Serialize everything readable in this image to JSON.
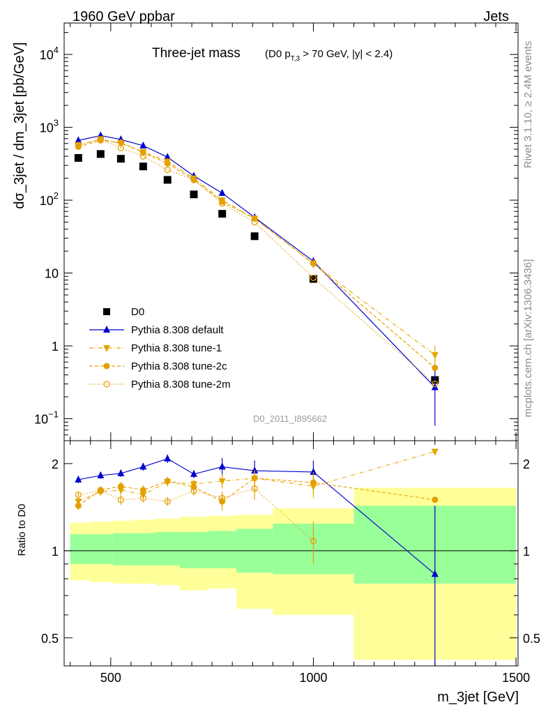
{
  "header": {
    "left": "1960 GeV ppbar",
    "right": "Jets"
  },
  "side_text": {
    "top": "Rivet 3.1.10, ≥ 2.4M events",
    "bottom": "mcplots.cern.ch [arXiv:1306.3436]"
  },
  "chart_data": [
    {
      "type": "scatter",
      "title": "Three-jet mass",
      "subtitle": "(D0 p_T,3 > 70 GeV, |y| < 2.4)",
      "watermark": "D0_2011_I895662",
      "ylabel": "dσ_3jet / dm_3jet [pb/GeV]",
      "xlim": [
        385,
        1505
      ],
      "ylim": [
        0.05,
        27000
      ],
      "yscale": "log",
      "yticks": [
        "10^-1",
        "1",
        "10",
        "10^2",
        "10^3",
        "10^4"
      ],
      "legend_position": "bottom-left",
      "x": [
        420,
        475,
        525,
        580,
        640,
        705,
        775,
        855,
        1000,
        1300
      ],
      "series": [
        {
          "name": "D0",
          "style": "data",
          "color": "#000000",
          "marker": "square",
          "values": [
            380,
            430,
            370,
            290,
            190,
            120,
            65,
            32,
            8.3,
            0.34
          ]
        },
        {
          "name": "Pythia 8.308 default",
          "style": "solid",
          "color": "#0000cc",
          "marker": "triangle-up",
          "values": [
            660,
            770,
            680,
            560,
            390,
            215,
            125,
            58,
            14.5,
            0.27
          ],
          "errors": [
            0,
            0,
            0,
            0,
            0,
            0,
            0,
            0,
            2,
            0.19
          ]
        },
        {
          "name": "Pythia 8.308 tune-1",
          "style": "dashdot",
          "color": "#e0a800",
          "marker": "triangle-down",
          "values": [
            570,
            690,
            600,
            460,
            340,
            200,
            100,
            56,
            13.5,
            0.75
          ],
          "errors": [
            0,
            0,
            0,
            0,
            0,
            0,
            0,
            0,
            2,
            0.25
          ]
        },
        {
          "name": "Pythia 8.308 tune-2c",
          "style": "dashed",
          "color": "#e69f00",
          "marker": "circle-filled",
          "values": [
            540,
            660,
            620,
            450,
            320,
            190,
            95,
            56,
            13.5,
            0.5
          ]
        },
        {
          "name": "Pythia 8.308 tune-2m",
          "style": "dotted",
          "color": "#e69f00",
          "marker": "circle-open",
          "values": [
            570,
            680,
            520,
            400,
            260,
            190,
            90,
            50,
            8.6,
            0.3
          ]
        }
      ]
    },
    {
      "type": "scatter",
      "ylabel": "Ratio to D0",
      "xlabel": "m_3jet [GeV]",
      "xlim": [
        385,
        1505
      ],
      "ylim": [
        0.4,
        2.4
      ],
      "yscale": "log",
      "yticks": [
        "0.5",
        "1",
        "2"
      ],
      "xticks": [
        "500",
        "1000",
        "1500"
      ],
      "reference_line": 1,
      "bands": {
        "inner_color": "#99ff99",
        "outer_color": "#ffff99",
        "bins": [
          {
            "lo": 400,
            "hi": 450,
            "inner": [
              0.9,
              1.14
            ],
            "outer": [
              0.79,
              1.25
            ]
          },
          {
            "lo": 450,
            "hi": 505,
            "inner": [
              0.9,
              1.14
            ],
            "outer": [
              0.78,
              1.26
            ]
          },
          {
            "lo": 505,
            "hi": 555,
            "inner": [
              0.89,
              1.15
            ],
            "outer": [
              0.77,
              1.27
            ]
          },
          {
            "lo": 555,
            "hi": 610,
            "inner": [
              0.89,
              1.15
            ],
            "outer": [
              0.77,
              1.28
            ]
          },
          {
            "lo": 610,
            "hi": 670,
            "inner": [
              0.89,
              1.16
            ],
            "outer": [
              0.76,
              1.29
            ]
          },
          {
            "lo": 670,
            "hi": 740,
            "inner": [
              0.87,
              1.16
            ],
            "outer": [
              0.73,
              1.31
            ]
          },
          {
            "lo": 740,
            "hi": 810,
            "inner": [
              0.87,
              1.17
            ],
            "outer": [
              0.74,
              1.32
            ]
          },
          {
            "lo": 810,
            "hi": 900,
            "inner": [
              0.84,
              1.19
            ],
            "outer": [
              0.63,
              1.33
            ]
          },
          {
            "lo": 900,
            "hi": 1100,
            "inner": [
              0.83,
              1.24
            ],
            "outer": [
              0.6,
              1.4
            ]
          },
          {
            "lo": 1100,
            "hi": 1500,
            "inner": [
              0.77,
              1.43
            ],
            "outer": [
              0.42,
              1.65
            ]
          }
        ]
      },
      "x": [
        420,
        475,
        525,
        580,
        640,
        705,
        775,
        855,
        1000,
        1300
      ],
      "series": [
        {
          "name": "Pythia 8.308 default",
          "color": "#0000cc",
          "marker": "triangle-up",
          "values": [
            1.76,
            1.82,
            1.85,
            1.95,
            2.08,
            1.84,
            1.95,
            1.89,
            1.87,
            0.83
          ],
          "errors": [
            0.05,
            0.05,
            0.05,
            0.06,
            0.07,
            0.06,
            0.14,
            0.16,
            0.18,
            0.6
          ]
        },
        {
          "name": "Pythia 8.308 tune-1",
          "color": "#e0a800",
          "marker": "triangle-down",
          "values": [
            1.48,
            1.6,
            1.62,
            1.56,
            1.73,
            1.7,
            1.74,
            1.78,
            1.67,
            2.2
          ],
          "errors": [
            0.04,
            0.05,
            0.05,
            0.05,
            0.06,
            0.06,
            0.1,
            0.12,
            0.15,
            0
          ]
        },
        {
          "name": "Pythia 8.308 tune-2c",
          "color": "#e69f00",
          "marker": "circle-filled",
          "values": [
            1.43,
            1.62,
            1.67,
            1.62,
            1.74,
            1.66,
            1.48,
            1.78,
            1.72,
            1.5
          ],
          "errors": [
            0.05,
            0.05,
            0.06,
            0.06,
            0.06,
            0.08,
            0.1,
            0.12,
            0.15,
            0
          ]
        },
        {
          "name": "Pythia 8.308 tune-2m",
          "color": "#e69f00",
          "marker": "circle-open",
          "values": [
            1.56,
            1.61,
            1.5,
            1.52,
            1.48,
            1.61,
            1.52,
            1.64,
            1.08,
            0
          ],
          "errors": [
            0.04,
            0.05,
            0.06,
            0.05,
            0.05,
            0.06,
            0.08,
            0.14,
            0.18,
            0
          ]
        }
      ]
    }
  ]
}
